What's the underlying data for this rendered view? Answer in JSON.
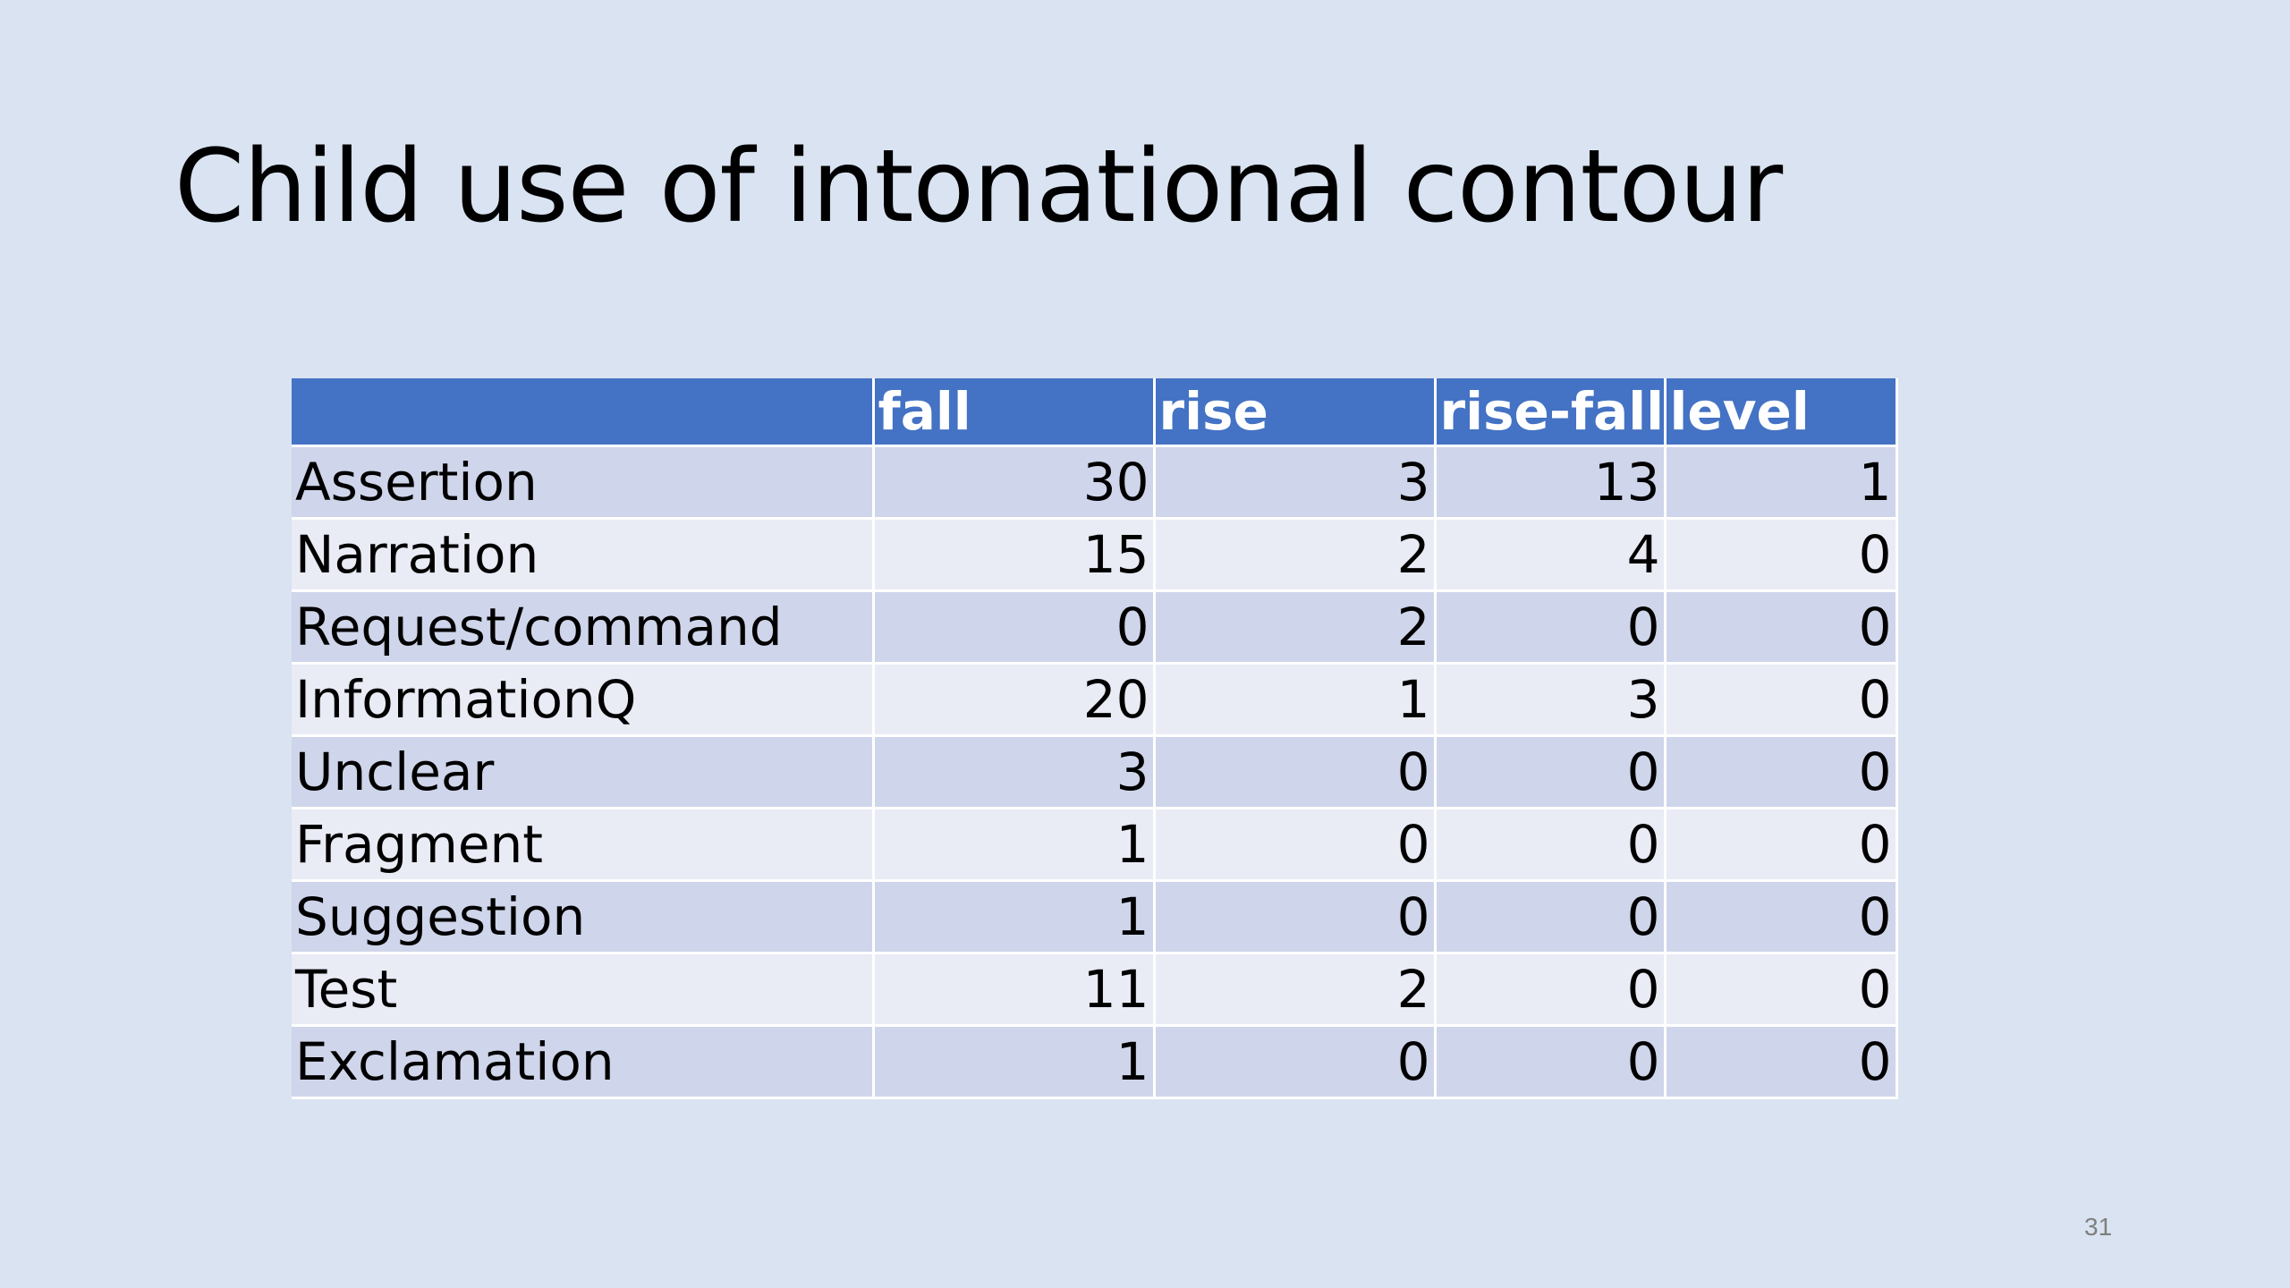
{
  "slide": {
    "title": "Child use of intonational contour",
    "number": "31"
  },
  "table": {
    "columns": [
      "",
      "fall",
      "rise",
      "rise-fall",
      "level"
    ],
    "rows": [
      {
        "label": "Assertion",
        "values": [
          "30",
          "3",
          "13",
          "1"
        ]
      },
      {
        "label": "Narration",
        "values": [
          "15",
          "2",
          "4",
          "0"
        ]
      },
      {
        "label": "Request/command",
        "values": [
          "0",
          "2",
          "0",
          "0"
        ]
      },
      {
        "label": "InformationQ",
        "values": [
          "20",
          "1",
          "3",
          "0"
        ]
      },
      {
        "label": "Unclear",
        "values": [
          "3",
          "0",
          "0",
          "0"
        ]
      },
      {
        "label": "Fragment",
        "values": [
          "1",
          "0",
          "0",
          "0"
        ]
      },
      {
        "label": "Suggestion",
        "values": [
          "1",
          "0",
          "0",
          "0"
        ]
      },
      {
        "label": "Test",
        "values": [
          "11",
          "2",
          "0",
          "0"
        ]
      },
      {
        "label": "Exclamation",
        "values": [
          "1",
          "0",
          "0",
          "0"
        ]
      }
    ]
  },
  "colors": {
    "background": "#d9e3f1",
    "header": "#4472c4",
    "row_dark": "#cfd5ea",
    "row_light": "#e9ebf5"
  }
}
